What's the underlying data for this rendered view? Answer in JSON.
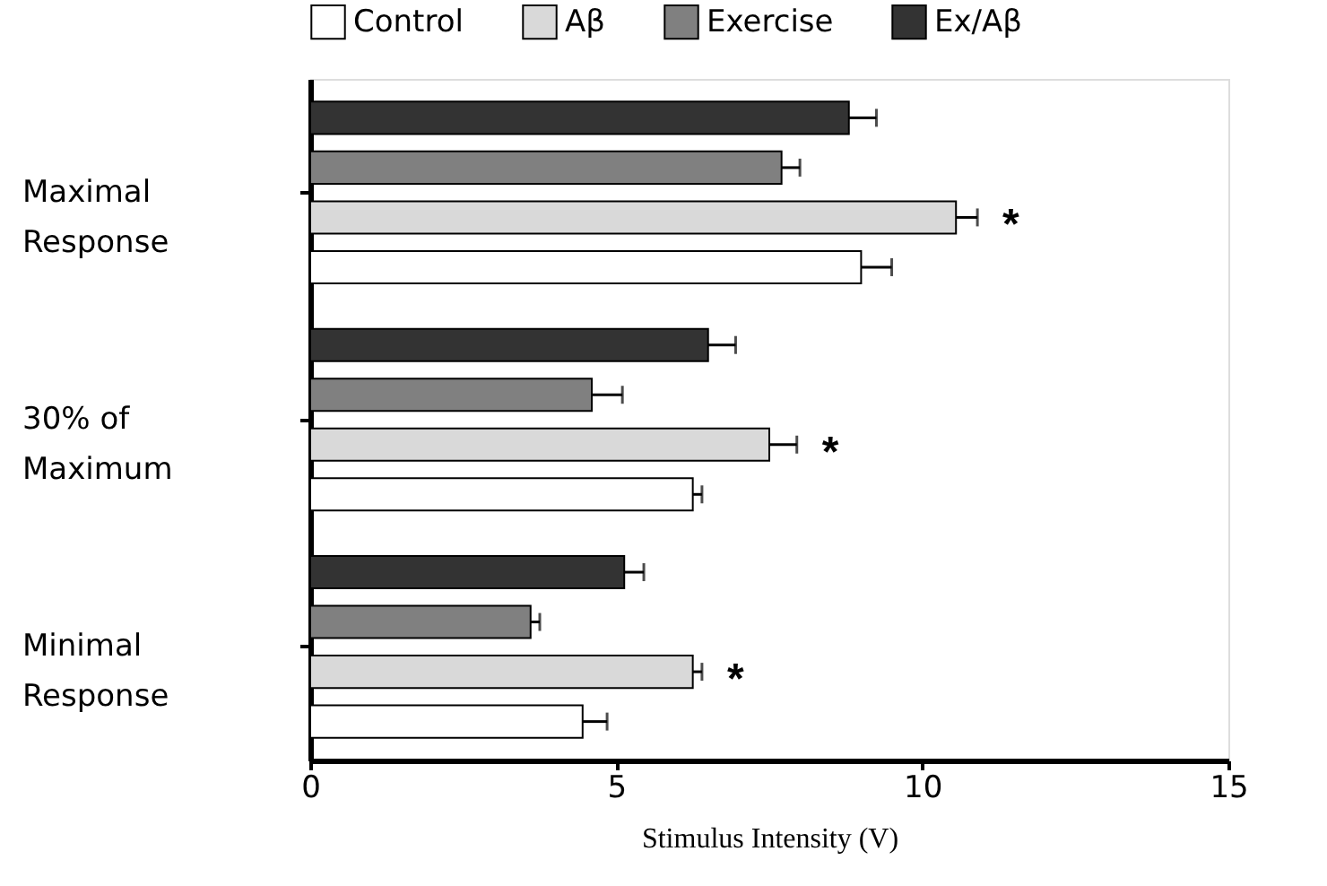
{
  "chart_data": {
    "type": "bar",
    "orientation": "horizontal",
    "categories": [
      "Maximal Response",
      "30% of Maximum",
      "Minimal Response"
    ],
    "series": [
      {
        "name": "Control",
        "color": "#ffffff",
        "values": [
          9.0,
          6.25,
          4.45
        ],
        "errors": [
          [
            9.0,
            9.5
          ],
          [
            6.25,
            6.4
          ],
          [
            4.45,
            4.85
          ]
        ]
      },
      {
        "name": "Aβ",
        "color": "#d9d9d9",
        "values": [
          10.55,
          7.5,
          6.25
        ],
        "errors": [
          [
            10.55,
            10.9
          ],
          [
            7.5,
            7.95
          ],
          [
            6.25,
            6.4
          ]
        ]
      },
      {
        "name": "Exercise",
        "color": "#808080",
        "values": [
          7.7,
          4.6,
          3.6
        ],
        "errors": [
          [
            7.7,
            8.0
          ],
          [
            4.6,
            5.1
          ],
          [
            3.6,
            3.75
          ]
        ]
      },
      {
        "name": "Ex/Aβ",
        "color": "#333333",
        "values": [
          8.8,
          6.5,
          5.13
        ],
        "errors": [
          [
            8.8,
            9.25
          ],
          [
            6.5,
            6.95
          ],
          [
            5.13,
            5.45
          ]
        ]
      }
    ],
    "xlabel": "Stimulus Intensity (V)",
    "xlim": [
      0,
      15
    ],
    "xticks": [
      0,
      5,
      10,
      15
    ],
    "annotations": [
      "*",
      "*",
      "*"
    ],
    "legend": "top",
    "grid": false
  }
}
